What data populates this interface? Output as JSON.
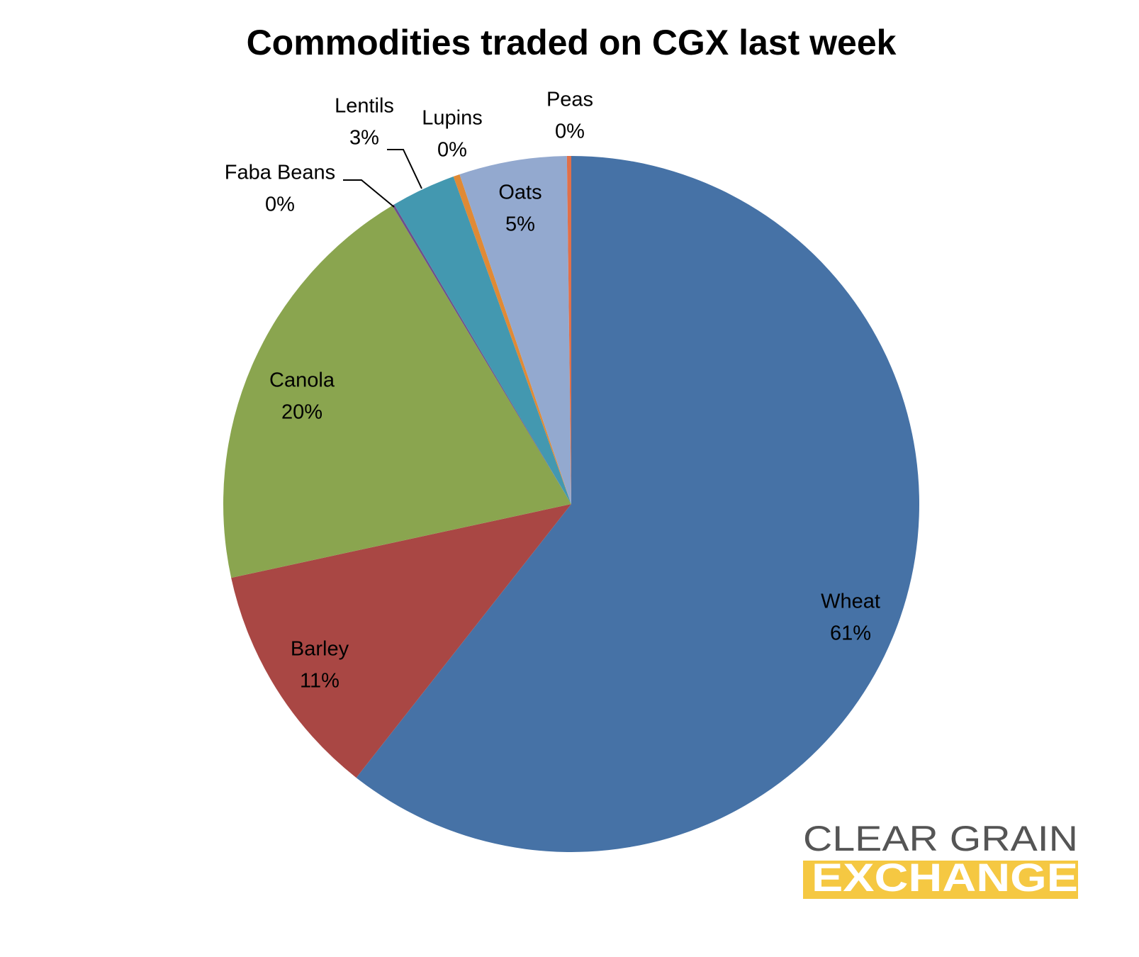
{
  "chart_data": {
    "type": "pie",
    "title": "Commodities traded on CGX last week",
    "categories": [
      "Wheat",
      "Barley",
      "Canola",
      "Faba Beans",
      "Lentils",
      "Lupins",
      "Oats",
      "Peas"
    ],
    "values": [
      60.6,
      11,
      19.8,
      0.1,
      3,
      0.3,
      5,
      0.2
    ],
    "value_labels": [
      "61%",
      "11%",
      "20%",
      "0%",
      "3%",
      "0%",
      "5%",
      "0%"
    ],
    "colors": [
      "#4672a6",
      "#a94744",
      "#8aa54f",
      "#6d4f8c",
      "#4398b0",
      "#e08a35",
      "#93a9cf",
      "#e0704a"
    ]
  },
  "logo": {
    "line1": "CLEAR GRAIN",
    "line2": "EXCHANGE"
  }
}
